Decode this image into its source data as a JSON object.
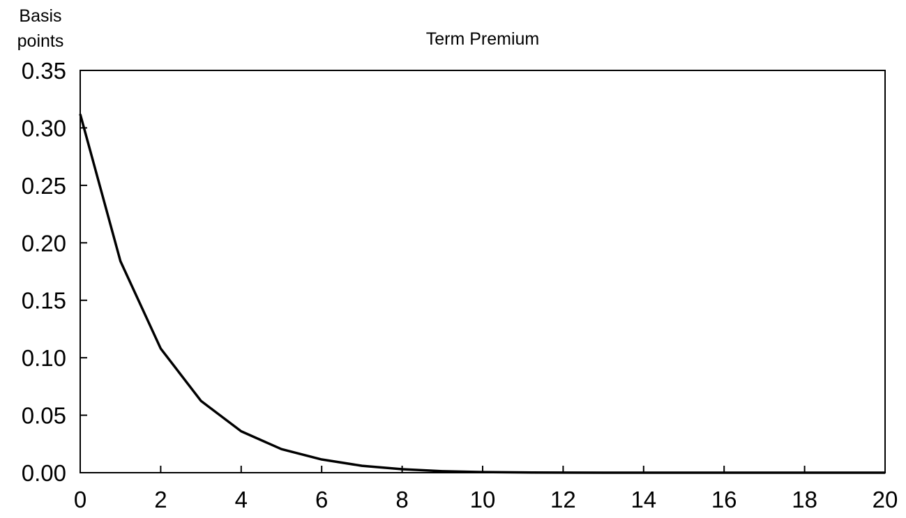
{
  "chart_data": {
    "type": "line",
    "title": "Term Premium",
    "ylabel": "Basis points",
    "ylabel_lines": [
      "Basis",
      "points"
    ],
    "xlabel": "",
    "xlim": [
      0,
      20
    ],
    "ylim": [
      0,
      0.35
    ],
    "x_ticks": [
      0,
      2,
      4,
      6,
      8,
      10,
      12,
      14,
      16,
      18,
      20
    ],
    "x_tick_labels": [
      "0",
      "2",
      "4",
      "6",
      "8",
      "10",
      "12",
      "14",
      "16",
      "18",
      "20"
    ],
    "y_ticks": [
      0,
      0.05,
      0.1,
      0.15,
      0.2,
      0.25,
      0.3,
      0.35
    ],
    "y_tick_labels": [
      "0.00",
      "0.05",
      "0.10",
      "0.15",
      "0.20",
      "0.25",
      "0.30",
      "0.35"
    ],
    "grid": false,
    "legend": "none",
    "series": [
      {
        "color": "#000000",
        "x": [
          0,
          1,
          2,
          3,
          4,
          5,
          6,
          7,
          8,
          9,
          10,
          11,
          12,
          13,
          14,
          15,
          16,
          17,
          18,
          19,
          20
        ],
        "values": [
          0.312,
          0.184,
          0.108,
          0.0625,
          0.036,
          0.0205,
          0.0115,
          0.006,
          0.003,
          0.0013,
          0.0005,
          0.0002,
          0.0001,
          0.0,
          0.0,
          0.0,
          0.0,
          0.0,
          0.0,
          0.0,
          0.0
        ]
      }
    ]
  }
}
